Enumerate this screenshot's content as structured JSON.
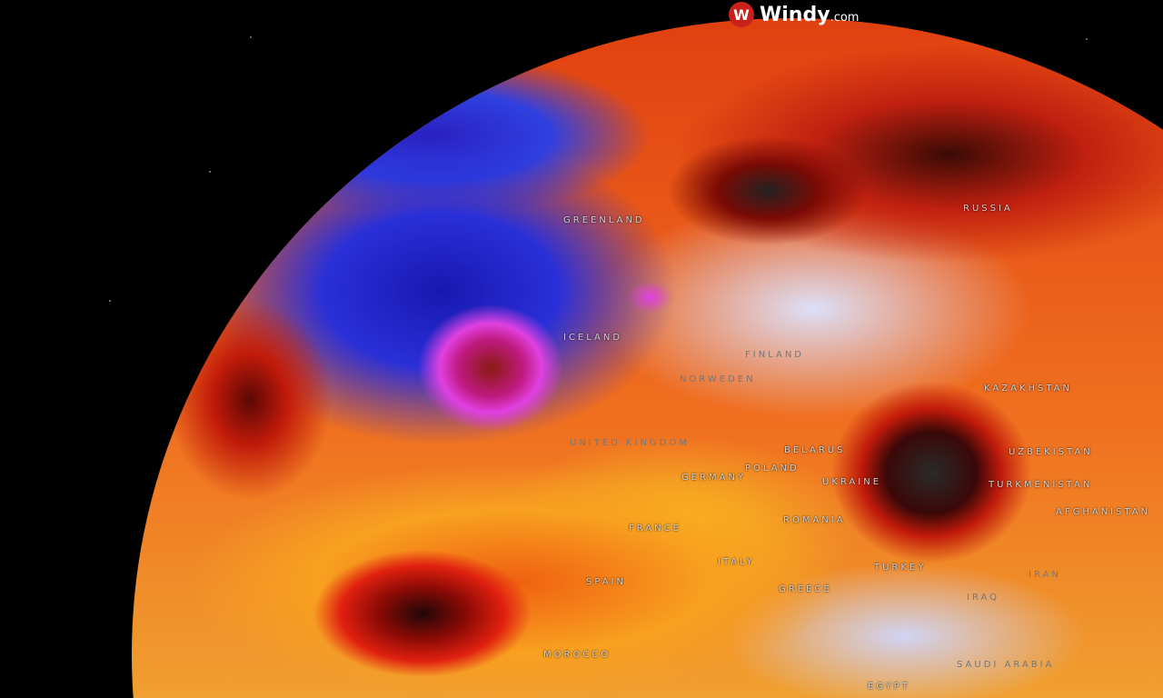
{
  "brand": {
    "name": "Windy",
    "suffix": ".com",
    "icon": "windy-logo-icon",
    "color": "#c8201a"
  },
  "map": {
    "view": "globe",
    "labels": [
      "GREENLAND",
      "ICELAND",
      "RUSSIA",
      "FINLAND",
      "NORWEDEN",
      "UNITED KINGDOM",
      "BELARUS",
      "POLAND",
      "GERMANY",
      "UKRAINE",
      "KAZAKHSTAN",
      "UZBEKISTAN",
      "TURKMENISTAN",
      "AFGHANISTAN",
      "FRANCE",
      "ROMANIA",
      "SPAIN",
      "ITALY",
      "GREECE",
      "TURKEY",
      "IRAN",
      "IRAQ",
      "MOROCCO",
      "SAUDI ARABIA",
      "EGYPT"
    ]
  }
}
